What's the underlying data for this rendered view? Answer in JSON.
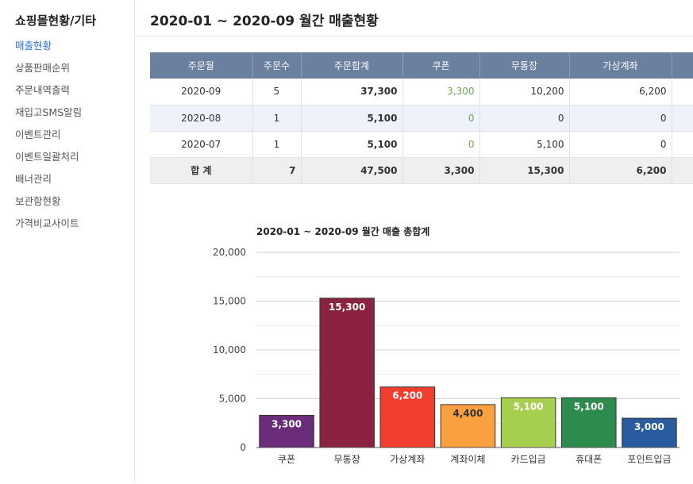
{
  "sidebar": {
    "title": "쇼핑몰현황/기타",
    "items": [
      {
        "label": "매출현황",
        "active": true
      },
      {
        "label": "상품판매순위"
      },
      {
        "label": "주문내역출력"
      },
      {
        "label": "재입고SMS알림"
      },
      {
        "label": "이벤트관리"
      },
      {
        "label": "이벤트일괄처리"
      },
      {
        "label": "배너관리"
      },
      {
        "label": "보관함현황"
      },
      {
        "label": "가격비교사이트"
      }
    ]
  },
  "page": {
    "title": "2020-01 ~ 2020-09 월간 매출현황"
  },
  "table": {
    "headers": [
      "주문월",
      "주문수",
      "주문합계",
      "쿠폰",
      "무통장",
      "가상계좌"
    ],
    "rows": [
      [
        "2020-09",
        "5",
        "37,300",
        "3,300",
        "10,200",
        "6,200"
      ],
      [
        "2020-08",
        "1",
        "5,100",
        "0",
        "0",
        "0"
      ],
      [
        "2020-07",
        "1",
        "5,100",
        "0",
        "5,100",
        "0"
      ]
    ],
    "total": [
      "합 계",
      "7",
      "47,500",
      "3,300",
      "15,300",
      "6,200"
    ]
  },
  "chart_data": {
    "type": "bar",
    "title": "2020-01 ~ 2020-09 월간 매출 총합계",
    "categories": [
      "쿠폰",
      "무통장",
      "가상계좌",
      "계좌이체",
      "카드입금",
      "휴대폰",
      "포인트입금"
    ],
    "values": [
      3300,
      15300,
      6200,
      4400,
      5100,
      5100,
      3000
    ],
    "data_labels": [
      "3,300",
      "15,300",
      "6,200",
      "4,400",
      "5,100",
      "5,100",
      "3,000"
    ],
    "colors": [
      "#6b2d7a",
      "#8b2240",
      "#f23e2e",
      "#fba040",
      "#a6cf50",
      "#2e8b4e",
      "#2a5b9e"
    ],
    "label_colors": [
      "#ffffff",
      "#ffffff",
      "#ffffff",
      "#333333",
      "#ffffff",
      "#ffffff",
      "#ffffff"
    ],
    "yticks": [
      0,
      5000,
      10000,
      15000,
      20000
    ],
    "ytick_labels": [
      "0",
      "5,000",
      "10,000",
      "15,000",
      "20,000"
    ],
    "ylim": [
      0,
      20000
    ],
    "grid": true
  }
}
